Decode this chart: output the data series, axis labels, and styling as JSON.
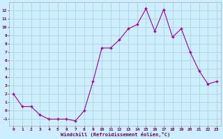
{
  "x": [
    0,
    1,
    2,
    3,
    4,
    5,
    6,
    7,
    8,
    9,
    10,
    11,
    12,
    13,
    14,
    15,
    16,
    17,
    18,
    19,
    20,
    21,
    22,
    23
  ],
  "y": [
    2,
    0.5,
    0.5,
    -0.5,
    -1,
    -1,
    -1,
    -1.2,
    0,
    3.5,
    7.5,
    7.5,
    8.5,
    9.8,
    10.3,
    12.2,
    9.5,
    12.1,
    8.8,
    9.8,
    7.0,
    4.8,
    3.2,
    3.5
  ],
  "line_color": "#990099",
  "marker": "+",
  "marker_color": "#990099",
  "bg_color": "#cceeff",
  "grid_color": "#aacccc",
  "xlabel": "Windchill (Refroidissement éolien,°C)",
  "xlabel_color": "#660066",
  "tick_color": "#660066",
  "xlim": [
    -0.5,
    23.5
  ],
  "ylim": [
    -1.8,
    13.0
  ],
  "yticks": [
    -1,
    0,
    1,
    2,
    3,
    4,
    5,
    6,
    7,
    8,
    9,
    10,
    11,
    12
  ],
  "xticks": [
    0,
    1,
    2,
    3,
    4,
    5,
    6,
    7,
    8,
    9,
    10,
    11,
    12,
    13,
    14,
    15,
    16,
    17,
    18,
    19,
    20,
    21,
    22,
    23
  ],
  "spine_color": "#aaaaaa",
  "linewidth": 0.8,
  "markersize": 3,
  "markeredgewidth": 1.0
}
